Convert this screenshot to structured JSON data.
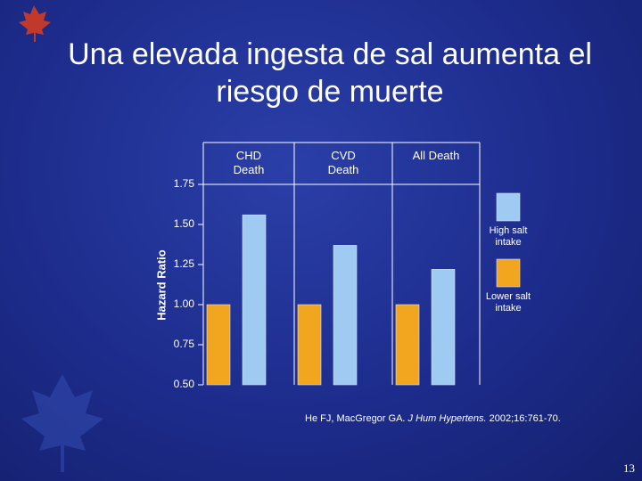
{
  "title": "Una elevada ingesta de sal aumenta el riesgo de muerte",
  "chart_data": {
    "type": "bar",
    "categories": [
      "CHD Death",
      "CVD Death",
      "All Death"
    ],
    "series": [
      {
        "name": "Lower salt intake",
        "color": "#f2a51e",
        "values": [
          1.0,
          1.0,
          1.0
        ]
      },
      {
        "name": "High salt intake",
        "color": "#9fcbf2",
        "values": [
          1.56,
          1.37,
          1.22
        ]
      }
    ],
    "ylabel": "Hazard Ratio",
    "ylim": [
      0.5,
      1.75
    ],
    "yticks": [
      {
        "value": 0.5,
        "label": "0.50"
      },
      {
        "value": 0.75,
        "label": "0.75"
      },
      {
        "value": 1.0,
        "label": "1.00"
      },
      {
        "value": 1.25,
        "label": "1.25"
      },
      {
        "value": 1.5,
        "label": "1.50"
      },
      {
        "value": 1.75,
        "label": "1.75"
      }
    ]
  },
  "citation": {
    "authors": "He FJ, MacGregor GA.",
    "journal": "J Hum Hypertens.",
    "reference": "2002;16:761-70."
  },
  "page_number": "13"
}
